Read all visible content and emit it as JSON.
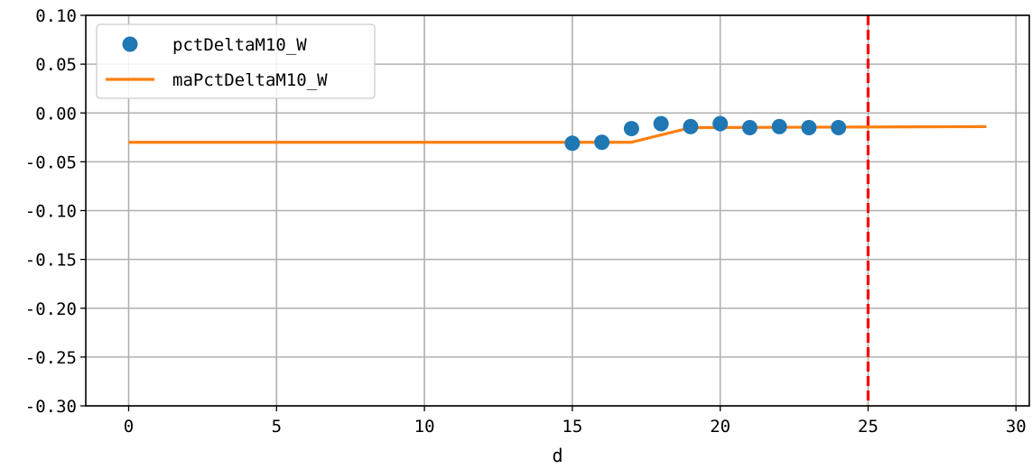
{
  "chart_data": {
    "type": "line",
    "xlabel": "d",
    "ylabel": "",
    "xlim": [
      -1.45,
      30.45
    ],
    "ylim": [
      -0.3,
      0.1
    ],
    "x_ticks": [
      0,
      5,
      10,
      15,
      20,
      25,
      30
    ],
    "y_ticks": [
      0.1,
      0.05,
      0.0,
      -0.05,
      -0.1,
      -0.15,
      -0.2,
      -0.25,
      -0.3
    ],
    "x_tick_labels": [
      "0",
      "5",
      "10",
      "15",
      "20",
      "25",
      "30"
    ],
    "y_tick_labels": [
      "0.10",
      "0.05",
      "0.00",
      "-0.05",
      "-0.10",
      "-0.15",
      "-0.20",
      "-0.25",
      "-0.30"
    ],
    "grid": true,
    "legend_position": "upper-left",
    "series": [
      {
        "name": "pctDeltaM10_W",
        "style": "scatter",
        "color": "#1f77b4",
        "x": [
          15,
          16,
          17,
          18,
          19,
          20,
          21,
          22,
          23,
          24
        ],
        "y": [
          -0.031,
          -0.03,
          -0.016,
          -0.011,
          -0.014,
          -0.011,
          -0.015,
          -0.014,
          -0.015,
          -0.015
        ]
      },
      {
        "name": "maPctDeltaM10_W",
        "style": "line",
        "color": "#ff7f0e",
        "x": [
          0,
          17,
          19,
          29
        ],
        "y": [
          -0.03,
          -0.03,
          -0.015,
          -0.014
        ]
      }
    ],
    "vlines": [
      {
        "x": 25,
        "color": "#ff0000",
        "style": "dashed"
      }
    ]
  }
}
